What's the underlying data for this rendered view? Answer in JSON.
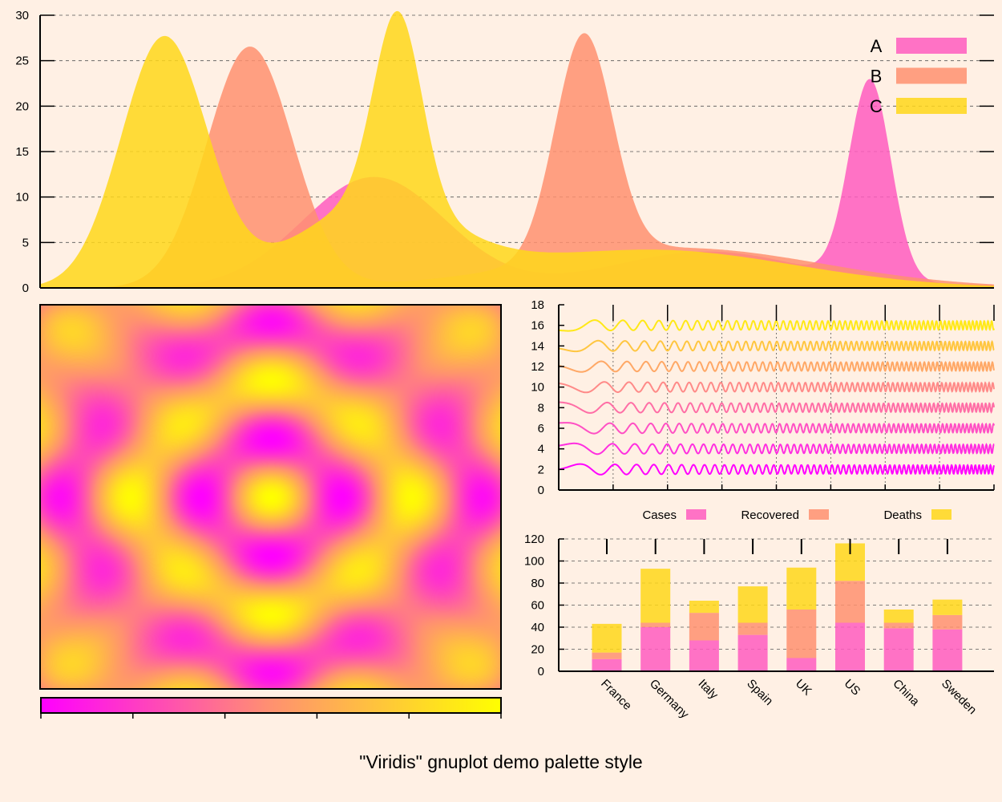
{
  "page_title": "\"Viridis\" gnuplot demo palette style",
  "palette": {
    "magenta": "#ff00ff",
    "pink": "#ff5cc0",
    "salmon": "#ff9170",
    "gold": "#ffd71a",
    "yellow": "#ffff00",
    "background": "#fff0e4"
  },
  "chart_data": [
    {
      "id": "filled-curves",
      "type": "area",
      "ylim": [
        0,
        30
      ],
      "xlim": [
        0,
        1
      ],
      "y_ticks": [
        "0",
        "5",
        "10",
        "15",
        "20",
        "25",
        "30"
      ],
      "grid": "horizontal dashed",
      "legend_position": "top-right",
      "series": [
        {
          "name": "A",
          "color": "#ff5cc0",
          "components": [
            {
              "center": 0.35,
              "amp": 12.2,
              "sigma": 0.075
            },
            {
              "center": 0.7,
              "amp": 4.0,
              "sigma": 0.1
            },
            {
              "center": 0.87,
              "amp": 22.0,
              "sigma": 0.022
            },
            {
              "center": 0.97,
              "amp": 0.3,
              "sigma": 0.05
            }
          ]
        },
        {
          "name": "B",
          "color": "#ff9170",
          "components": [
            {
              "center": 0.22,
              "amp": 26.5,
              "sigma": 0.045
            },
            {
              "center": 0.57,
              "amp": 24.5,
              "sigma": 0.03
            },
            {
              "center": 0.67,
              "amp": 4.4,
              "sigma": 0.15
            }
          ]
        },
        {
          "name": "C",
          "color": "#ffd71a",
          "components": [
            {
              "center": 0.13,
              "amp": 27.5,
              "sigma": 0.045
            },
            {
              "center": 0.375,
              "amp": 21.0,
              "sigma": 0.025
            },
            {
              "center": 0.35,
              "amp": 9.0,
              "sigma": 0.08
            },
            {
              "center": 0.64,
              "amp": 4.2,
              "sigma": 0.15
            }
          ]
        }
      ]
    },
    {
      "id": "interference-map",
      "type": "heatmap",
      "color_scale": [
        "#ff00ff",
        "#ff9170",
        "#ffff00"
      ],
      "colorbar_ticks": 6
    },
    {
      "id": "chirp-lines",
      "type": "line",
      "ylim": [
        0,
        18
      ],
      "y_ticks": [
        "0",
        "2",
        "4",
        "6",
        "8",
        "10",
        "12",
        "14",
        "16",
        "18"
      ],
      "x_ticks": 9,
      "grid": "vertical dotted",
      "series_offsets": [
        2,
        4,
        6,
        8,
        10,
        12,
        14,
        16
      ],
      "amplitude": 0.55
    },
    {
      "id": "stacked-bars",
      "type": "bar",
      "stacked": true,
      "ylim": [
        0,
        120
      ],
      "y_ticks": [
        "0",
        "20",
        "40",
        "60",
        "80",
        "100",
        "120"
      ],
      "categories": [
        "France",
        "Germany",
        "Italy",
        "Spain",
        "UK",
        "US",
        "China",
        "Sweden"
      ],
      "legend_position": "top",
      "series": [
        {
          "name": "Cases",
          "color": "#ff5cc0",
          "values": [
            11,
            40,
            28,
            33,
            12,
            44,
            39,
            38
          ]
        },
        {
          "name": "Recovered",
          "color": "#ff9170",
          "values": [
            6,
            4,
            25,
            11,
            44,
            38,
            5,
            13
          ]
        },
        {
          "name": "Deaths",
          "color": "#ffd71a",
          "values": [
            26,
            49,
            11,
            33,
            38,
            34,
            12,
            14
          ]
        }
      ]
    }
  ]
}
